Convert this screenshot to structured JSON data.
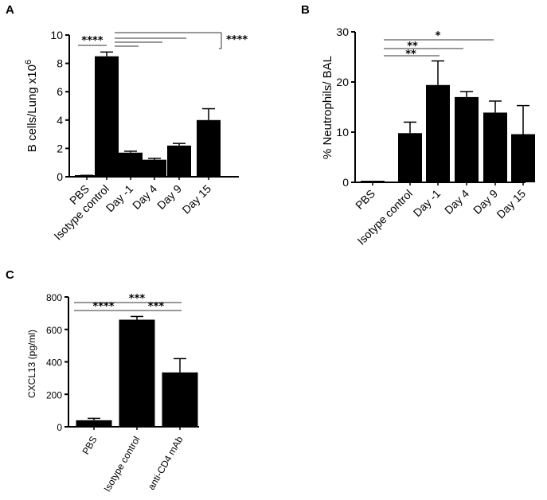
{
  "chart_data": [
    {
      "panel": "A",
      "type": "bar",
      "ylabel": "B cells/Lung x10",
      "ylabel_sup": "6",
      "ylim": [
        0,
        10
      ],
      "yticks": [
        0,
        2,
        4,
        6,
        8,
        10
      ],
      "categories": [
        "PBS",
        "Isotype control",
        "Day -1",
        "Day 4",
        "Day 9",
        "Day 15"
      ],
      "values": [
        0.05,
        8.5,
        1.7,
        1.2,
        2.2,
        4.0
      ],
      "errors": [
        0.05,
        0.3,
        0.1,
        0.1,
        0.15,
        0.8
      ],
      "significance": [
        {
          "from": 0,
          "to": 1,
          "label": "****"
        },
        {
          "from": 1,
          "to": 2,
          "label": ""
        },
        {
          "from": 1,
          "to": 3,
          "label": ""
        },
        {
          "from": 1,
          "to": 4,
          "label": ""
        },
        {
          "from": 1,
          "to": 5,
          "label": "****"
        }
      ]
    },
    {
      "panel": "B",
      "type": "bar",
      "ylabel": "% Neutrophils/ BAL",
      "ylim": [
        0,
        30
      ],
      "yticks": [
        0,
        10,
        20,
        30
      ],
      "categories": [
        "PBS",
        "Isotype control",
        "Day -1",
        "Day 4",
        "Day 9",
        "Day 15"
      ],
      "values": [
        0.1,
        9.8,
        19.4,
        17.0,
        13.9,
        9.6
      ],
      "errors": [
        0.1,
        2.2,
        4.8,
        1.1,
        2.3,
        5.7
      ],
      "significance": [
        {
          "from": 0,
          "to": 2,
          "label": "**"
        },
        {
          "from": 0,
          "to": 3,
          "label": "**"
        },
        {
          "from": 0,
          "to": 4,
          "label": "*"
        }
      ]
    },
    {
      "panel": "C",
      "type": "bar",
      "ylabel": "CXCL13 (pg/ml)",
      "ylim": [
        0,
        800
      ],
      "yticks": [
        0,
        200,
        400,
        600,
        800
      ],
      "categories": [
        "PBS",
        "Isotype control",
        "anti-CD4 mAb"
      ],
      "values": [
        40,
        660,
        335
      ],
      "errors": [
        12,
        20,
        85
      ],
      "significance": [
        {
          "from": 0,
          "to": 1,
          "label": "****"
        },
        {
          "from": 1,
          "to": 2,
          "label": "***"
        },
        {
          "from": 0,
          "to": 2,
          "label": "***"
        }
      ]
    }
  ]
}
